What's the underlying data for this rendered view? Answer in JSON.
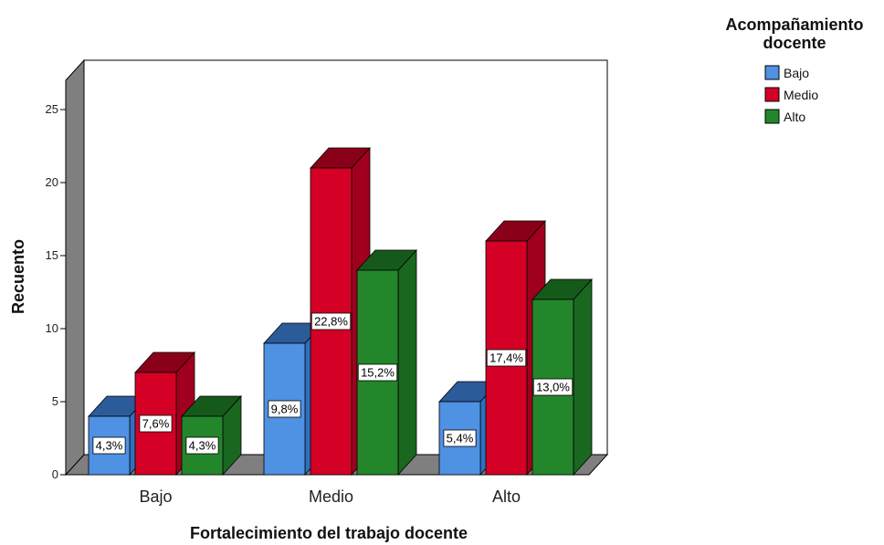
{
  "chart_data": {
    "type": "bar",
    "categories": [
      "Bajo",
      "Medio",
      "Alto"
    ],
    "series": [
      {
        "name": "Bajo",
        "values": [
          4,
          9,
          5
        ],
        "labels": [
          "4,3%",
          "9,8%",
          "5,4%"
        ],
        "color": "#4f91e3",
        "top_color": "#2c5b9a",
        "side_color": "#2f6fbf"
      },
      {
        "name": "Medio",
        "values": [
          7,
          21,
          16
        ],
        "labels": [
          "7,6%",
          "22,8%",
          "17,4%"
        ],
        "color": "#d40026",
        "top_color": "#8a0018",
        "side_color": "#a0001d"
      },
      {
        "name": "Alto",
        "values": [
          4,
          14,
          12
        ],
        "labels": [
          "4,3%",
          "15,2%",
          "13,0%"
        ],
        "color": "#23862b",
        "top_color": "#165a1b",
        "side_color": "#1a6720"
      }
    ],
    "yticks": [
      0,
      5,
      10,
      15,
      20,
      25
    ],
    "ylim": [
      0,
      27
    ],
    "xlabel": "Fortalecimiento del trabajo docente",
    "ylabel": "Recuento",
    "legend": {
      "title_lines": [
        "Acompañamiento",
        "docente"
      ],
      "position": "top-right"
    },
    "grid": false,
    "style": "3d-clustered-bar"
  }
}
